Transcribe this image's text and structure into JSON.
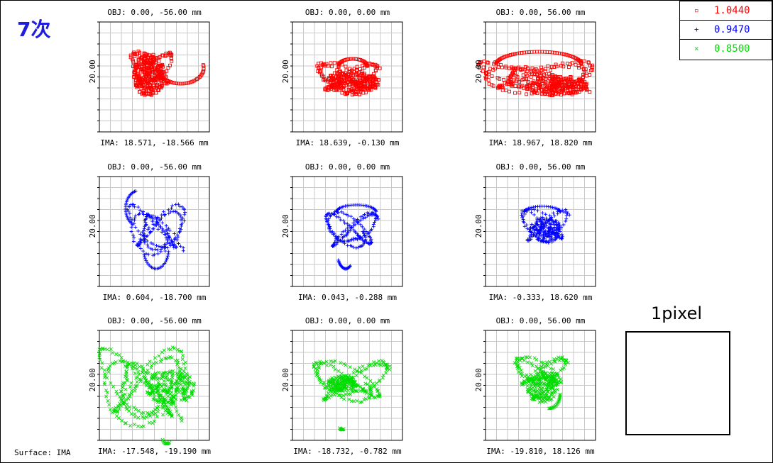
{
  "title": "7次",
  "surface_label": "Surface: IMA",
  "pixel_label": "1pixel",
  "legend": [
    {
      "marker": "square-marker",
      "symbol": "▫",
      "value": "1.0440",
      "color": "#ff0000"
    },
    {
      "marker": "plus-marker",
      "symbol": "+",
      "value": "0.9470",
      "color": "#0000ff"
    },
    {
      "marker": "x-marker",
      "symbol": "×",
      "value": "0.8500",
      "color": "#00dd00"
    }
  ],
  "chart_data": {
    "type": "scatter",
    "title": "",
    "scale_label": "20.00",
    "plots": [
      {
        "obj": "OBJ: 0.00, -56.00 mm",
        "ima": "IMA: 18.571, -18.566 mm",
        "series": "1.0440",
        "color": "#ff0000",
        "marker": "square"
      },
      {
        "obj": "OBJ: 0.00, 0.00 mm",
        "ima": "IMA: 18.639, -0.130 mm",
        "series": "1.0440",
        "color": "#ff0000",
        "marker": "square"
      },
      {
        "obj": "OBJ: 0.00, 56.00 mm",
        "ima": "IMA: 18.967, 18.820 mm",
        "series": "1.0440",
        "color": "#ff0000",
        "marker": "square"
      },
      {
        "obj": "OBJ: 0.00, -56.00 mm",
        "ima": "IMA: 0.604, -18.700 mm",
        "series": "0.9470",
        "color": "#0000ff",
        "marker": "plus"
      },
      {
        "obj": "OBJ: 0.00, 0.00 mm",
        "ima": "IMA: 0.043, -0.288 mm",
        "series": "0.9470",
        "color": "#0000ff",
        "marker": "plus"
      },
      {
        "obj": "OBJ: 0.00, 56.00 mm",
        "ima": "IMA: -0.333, 18.620 mm",
        "series": "0.9470",
        "color": "#0000ff",
        "marker": "plus"
      },
      {
        "obj": "OBJ: 0.00, -56.00 mm",
        "ima": "IMA: -17.548, -19.190 mm",
        "series": "0.8500",
        "color": "#00dd00",
        "marker": "x"
      },
      {
        "obj": "OBJ: 0.00, 0.00 mm",
        "ima": "IMA: -18.732, -0.782 mm",
        "series": "0.8500",
        "color": "#00dd00",
        "marker": "x"
      },
      {
        "obj": "OBJ: 0.00, 56.00 mm",
        "ima": "IMA: -19.810, 18.126 mm",
        "series": "0.8500",
        "color": "#00dd00",
        "marker": "x"
      }
    ]
  }
}
